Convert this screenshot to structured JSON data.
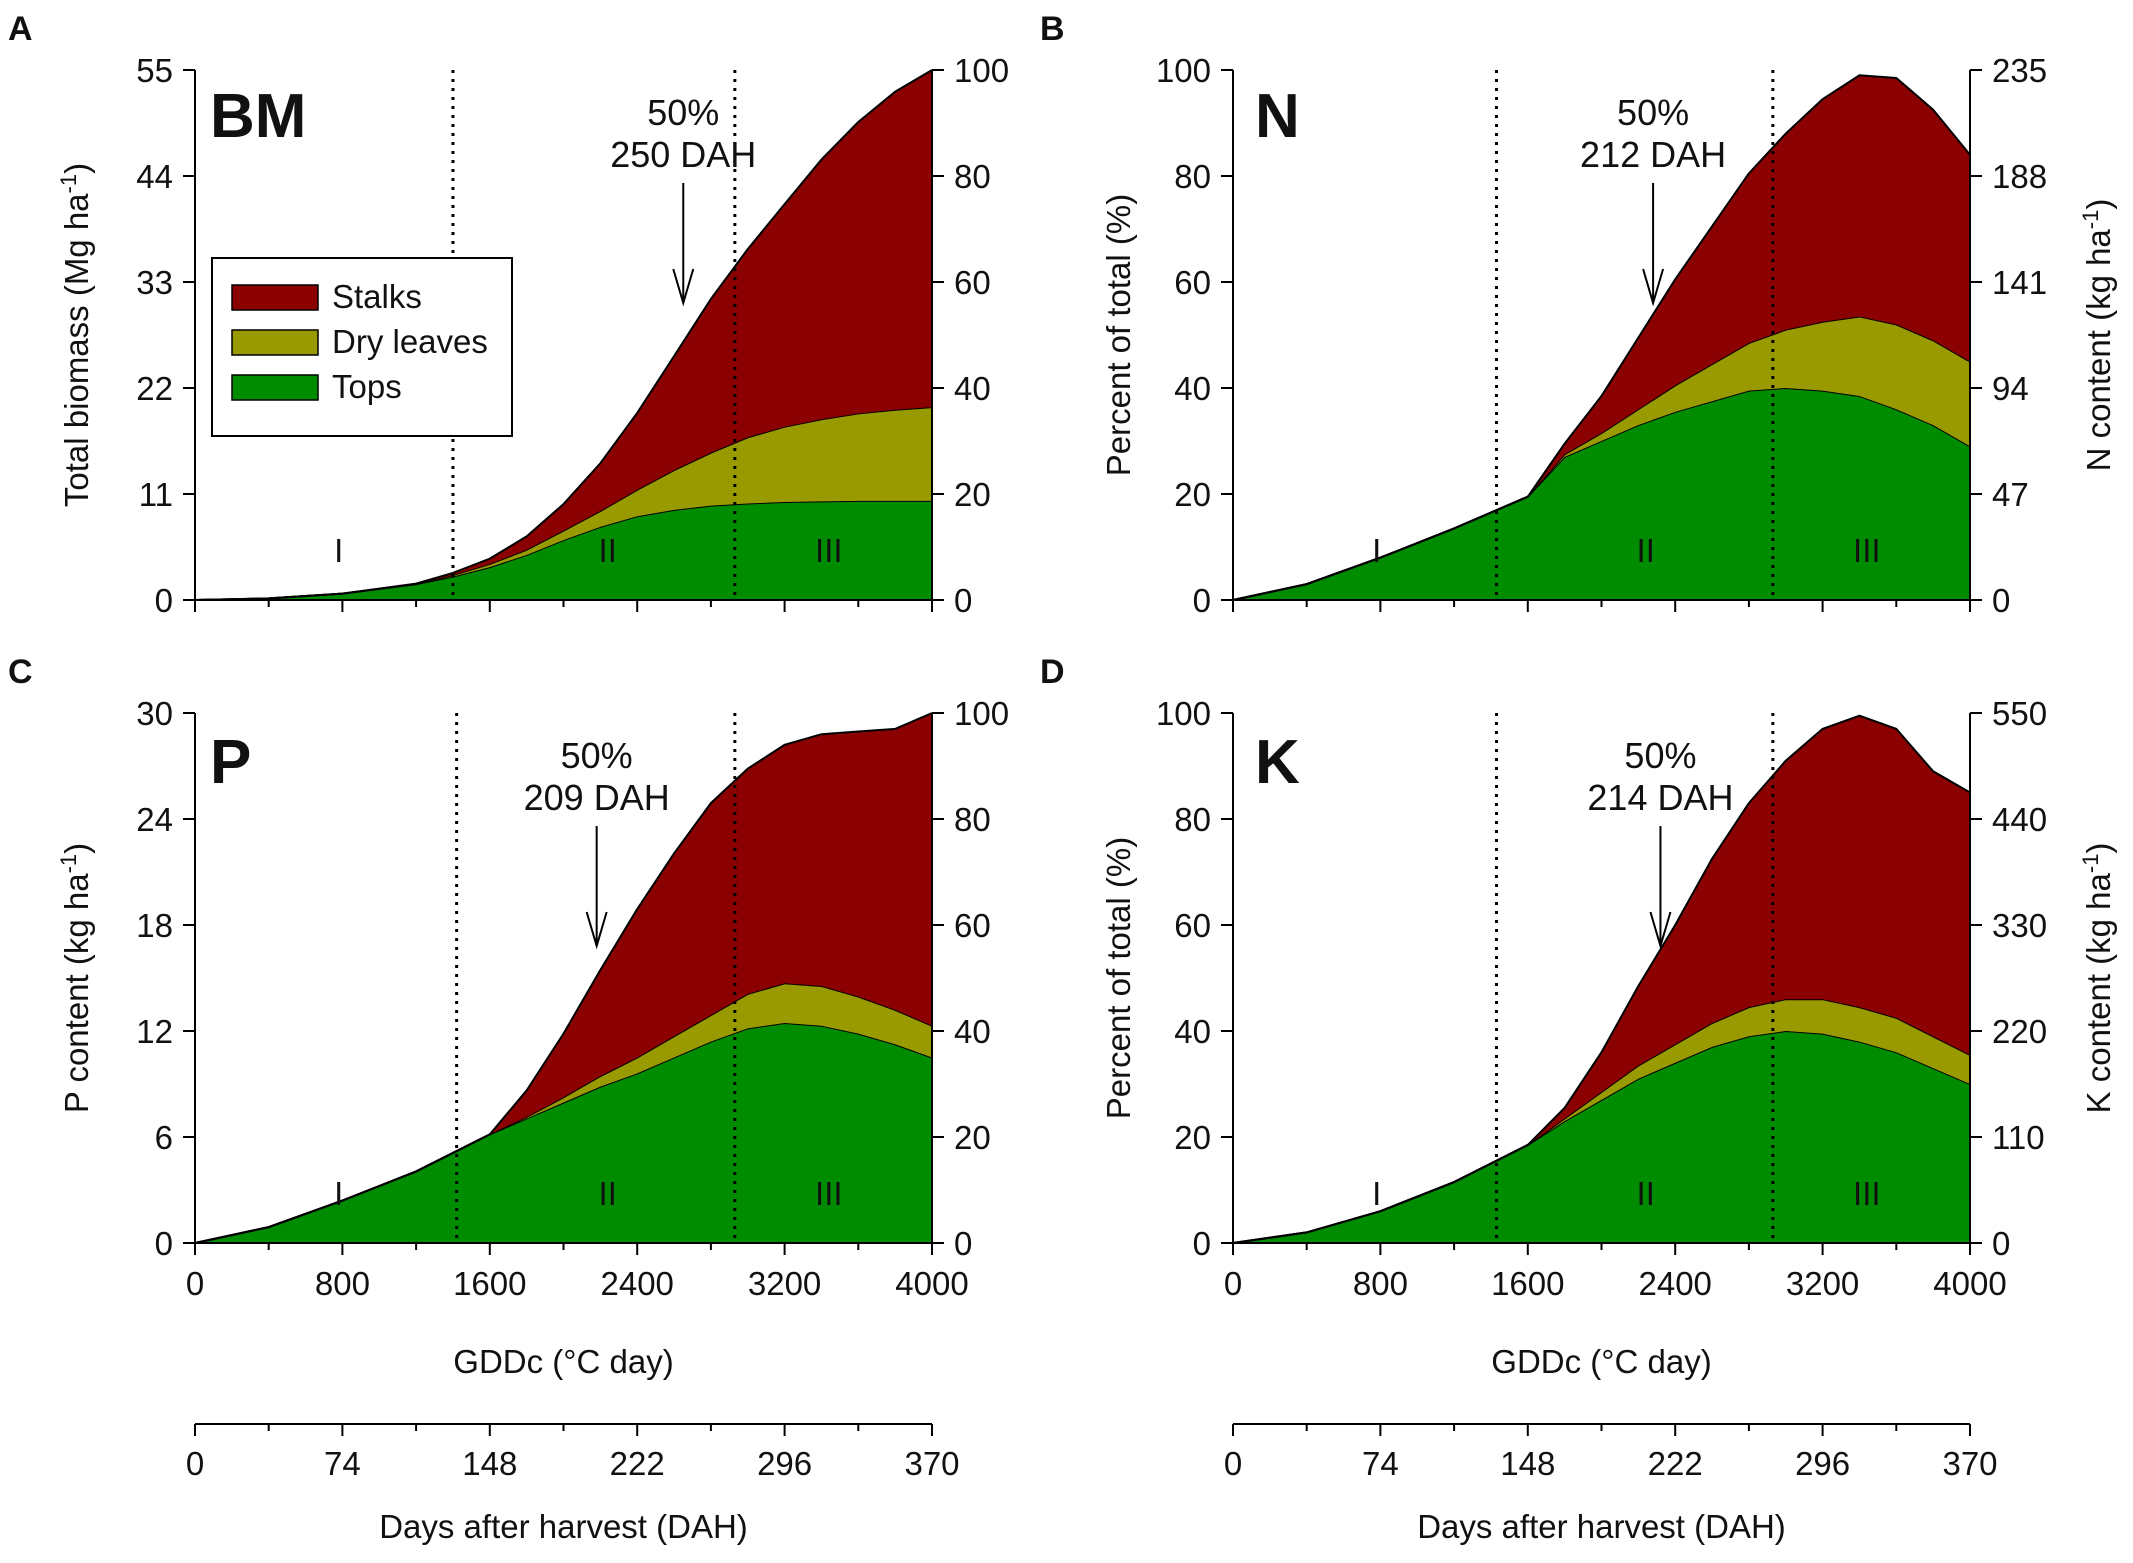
{
  "colors": {
    "stalks": "#8B0000",
    "dry_leaves": "#999900",
    "tops": "#008C00",
    "line": "#000000",
    "background": "#ffffff"
  },
  "shared": {
    "x_label": "GDDc (°C day)",
    "x_ticks": [
      "0",
      "800",
      "1600",
      "2400",
      "3200",
      "4000"
    ],
    "dah_label": "Days after harvest (DAH)",
    "dah_ticks": [
      "0",
      "74",
      "148",
      "222",
      "296",
      "370"
    ],
    "regions": [
      "I",
      "II",
      "III"
    ],
    "right_pct_ticks": [
      "0",
      "20",
      "40",
      "60",
      "80",
      "100"
    ],
    "legend": [
      "Stalks",
      "Dry leaves",
      "Tops"
    ]
  },
  "chart_data": [
    {
      "panel": "A",
      "label": "BM",
      "type": "area",
      "stacked": true,
      "y_left_label": "Total biomass (Mg ha",
      "y_left_sup": "-1",
      "y_left_ticks": [
        "0",
        "11",
        "22",
        "33",
        "44",
        "55"
      ],
      "y_right_ticks": [
        "0",
        "20",
        "40",
        "60",
        "80",
        "100"
      ],
      "xlim": [
        0,
        4000
      ],
      "ylim_percent": [
        0,
        100
      ],
      "phase_boundaries_gddc": [
        1400,
        2930
      ],
      "annotation": {
        "line1": "50%",
        "line2": "250 DAH",
        "x_gddc": 2650
      },
      "x": [
        0,
        400,
        800,
        1200,
        1400,
        1600,
        1800,
        2000,
        2200,
        2400,
        2600,
        2800,
        3000,
        3200,
        3400,
        3600,
        3800,
        4000
      ],
      "series": [
        {
          "name": "Tops",
          "values": [
            0,
            0.3,
            1.2,
            3,
            4.4,
            6.2,
            8.5,
            11.3,
            13.8,
            15.8,
            17,
            17.8,
            18.2,
            18.5,
            18.6,
            18.7,
            18.7,
            18.7
          ]
        },
        {
          "name": "Dry leaves",
          "values": [
            0,
            0,
            0,
            0,
            0.3,
            0.6,
            1,
            1.8,
            3,
            5,
            7.5,
            10,
            12.5,
            14.2,
            15.5,
            16.5,
            17.2,
            17.7
          ]
        },
        {
          "name": "Stalks",
          "values": [
            0,
            0,
            0,
            0.1,
            0.4,
            1,
            2.5,
            5,
            9,
            14.5,
            21.5,
            29,
            35.5,
            42,
            49,
            55,
            60,
            63.6
          ]
        }
      ]
    },
    {
      "panel": "B",
      "label": "N",
      "type": "area",
      "stacked": true,
      "y_left_label": "Percent of total (%)",
      "y_left_ticks": [
        "0",
        "20",
        "40",
        "60",
        "80",
        "100"
      ],
      "y_right_label": "N content (kg ha",
      "y_right_sup": "-1",
      "y_right_ticks": [
        "0",
        "47",
        "94",
        "141",
        "188",
        "235"
      ],
      "xlim": [
        0,
        4000
      ],
      "ylim_percent": [
        0,
        100
      ],
      "phase_boundaries_gddc": [
        1430,
        2930
      ],
      "annotation": {
        "line1": "50%",
        "line2": "212 DAH",
        "x_gddc": 2280
      },
      "x": [
        0,
        400,
        800,
        1200,
        1600,
        1800,
        2000,
        2200,
        2400,
        2600,
        2800,
        3000,
        3200,
        3400,
        3600,
        3800,
        4000
      ],
      "series": [
        {
          "name": "Tops",
          "values": [
            0,
            3,
            8,
            13.5,
            19.5,
            27,
            30,
            33,
            35.5,
            37.5,
            39.5,
            40,
            39.5,
            38.5,
            36,
            33,
            29
          ]
        },
        {
          "name": "Dry leaves",
          "values": [
            0,
            0,
            0,
            0,
            0,
            0.5,
            1.5,
            3,
            5,
            7,
            9,
            11,
            13,
            15,
            16,
            16,
            16
          ]
        },
        {
          "name": "Stalks",
          "values": [
            0,
            0,
            0,
            0,
            0,
            2,
            7,
            13.5,
            20,
            26,
            32,
            37,
            42,
            45.5,
            46.5,
            43.5,
            39
          ]
        }
      ]
    },
    {
      "panel": "C",
      "label": "P",
      "type": "area",
      "stacked": true,
      "y_left_label": "P content (kg ha",
      "y_left_sup": "-1",
      "y_left_ticks": [
        "0",
        "6",
        "12",
        "18",
        "24",
        "30"
      ],
      "y_right_ticks": [
        "0",
        "20",
        "40",
        "60",
        "80",
        "100"
      ],
      "xlim": [
        0,
        4000
      ],
      "ylim_percent": [
        0,
        100
      ],
      "phase_boundaries_gddc": [
        1420,
        2930
      ],
      "annotation": {
        "line1": "50%",
        "line2": "209 DAH",
        "x_gddc": 2180
      },
      "x": [
        0,
        400,
        800,
        1200,
        1600,
        1800,
        2000,
        2200,
        2400,
        2600,
        2800,
        3000,
        3200,
        3400,
        3600,
        3800,
        4000
      ],
      "series": [
        {
          "name": "Tops",
          "values": [
            0,
            3,
            8,
            13.5,
            20.5,
            23.5,
            26.5,
            29.5,
            32,
            35,
            38,
            40.5,
            41.5,
            41,
            39.5,
            37.5,
            35
          ]
        },
        {
          "name": "Dry leaves",
          "values": [
            0,
            0,
            0,
            0,
            0,
            0.3,
            1,
            2,
            3,
            4,
            5,
            6.5,
            7.5,
            7.5,
            7,
            6.5,
            6
          ]
        },
        {
          "name": "Stalks",
          "values": [
            0,
            0,
            0,
            0,
            0,
            5,
            12,
            20,
            28,
            34.5,
            40,
            42.5,
            45,
            47.5,
            50,
            53,
            59
          ]
        }
      ]
    },
    {
      "panel": "D",
      "label": "K",
      "type": "area",
      "stacked": true,
      "y_left_label": "Percent of total (%)",
      "y_left_ticks": [
        "0",
        "20",
        "40",
        "60",
        "80",
        "100"
      ],
      "y_right_label": "K content (kg ha",
      "y_right_sup": "-1",
      "y_right_ticks": [
        "0",
        "110",
        "220",
        "330",
        "440",
        "550"
      ],
      "xlim": [
        0,
        4000
      ],
      "ylim_percent": [
        0,
        100
      ],
      "phase_boundaries_gddc": [
        1430,
        2930
      ],
      "annotation": {
        "line1": "50%",
        "line2": "214 DAH",
        "x_gddc": 2320
      },
      "x": [
        0,
        400,
        800,
        1200,
        1600,
        1800,
        2000,
        2200,
        2400,
        2600,
        2800,
        3000,
        3200,
        3400,
        3600,
        3800,
        4000
      ],
      "series": [
        {
          "name": "Tops",
          "values": [
            0,
            2,
            6,
            11.5,
            18.5,
            23,
            27,
            31,
            34,
            37,
            39,
            40,
            39.5,
            38,
            36,
            33,
            30
          ]
        },
        {
          "name": "Dry leaves",
          "values": [
            0,
            0,
            0,
            0,
            0,
            0.5,
            1.5,
            2.5,
            3.5,
            4.5,
            5.5,
            6,
            6.5,
            6.5,
            6.5,
            6,
            5.5
          ]
        },
        {
          "name": "Stalks",
          "values": [
            0,
            0,
            0,
            0,
            0,
            2,
            7.5,
            15,
            22.5,
            31,
            38.5,
            45,
            51,
            55,
            54.5,
            50,
            49.5
          ]
        }
      ]
    }
  ]
}
